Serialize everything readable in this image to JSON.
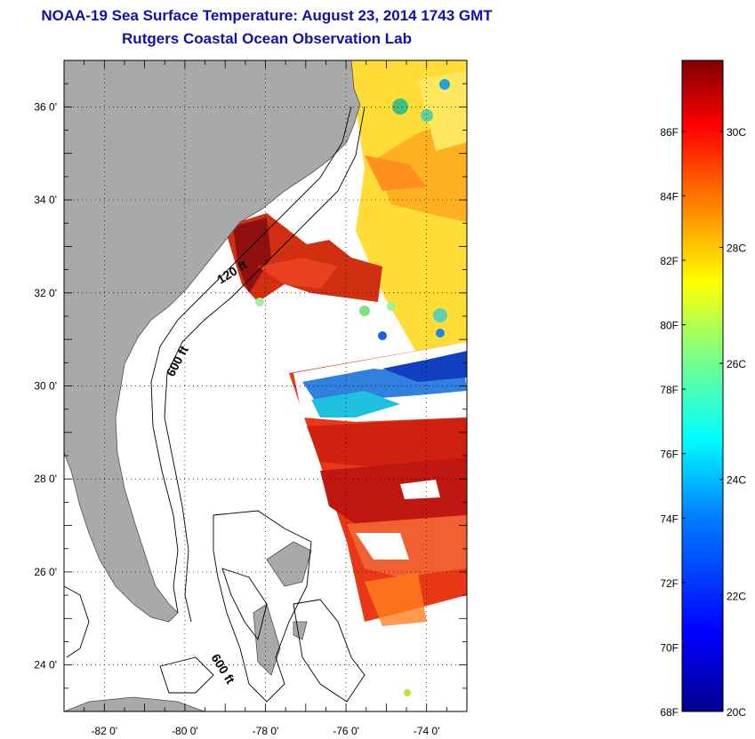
{
  "title": "NOAA-19 Sea Surface Temperature:  August 23, 2014 1743 GMT",
  "subtitle": "Rutgers Coastal Ocean Observation Lab",
  "map": {
    "lon_range": [
      -83,
      -73
    ],
    "lat_range": [
      23,
      37
    ],
    "lon_ticks": [
      "-82 0'",
      "-80 0'",
      "-78 0'",
      "-76 0'",
      "-74 0'"
    ],
    "lat_ticks": [
      "36 0'",
      "34 0'",
      "32 0'",
      "30 0'",
      "28 0'",
      "26 0'",
      "24 0'"
    ],
    "grid": "dotted",
    "contour_labels": [
      "120 ft",
      "600 ft",
      "600 ft"
    ],
    "land_color": "#a9a9a9"
  },
  "colorbar": {
    "f_labels": [
      "86F",
      "84F",
      "82F",
      "80F",
      "78F",
      "76F",
      "74F",
      "72F",
      "70F",
      "68F"
    ],
    "c_labels": [
      "30C",
      "28C",
      "26C",
      "24C",
      "22C",
      "20C"
    ],
    "colors": [
      "#00008f",
      "#0000ff",
      "#0080ff",
      "#00ffff",
      "#80ff80",
      "#ffff00",
      "#ff8000",
      "#ff0000",
      "#800000"
    ]
  }
}
